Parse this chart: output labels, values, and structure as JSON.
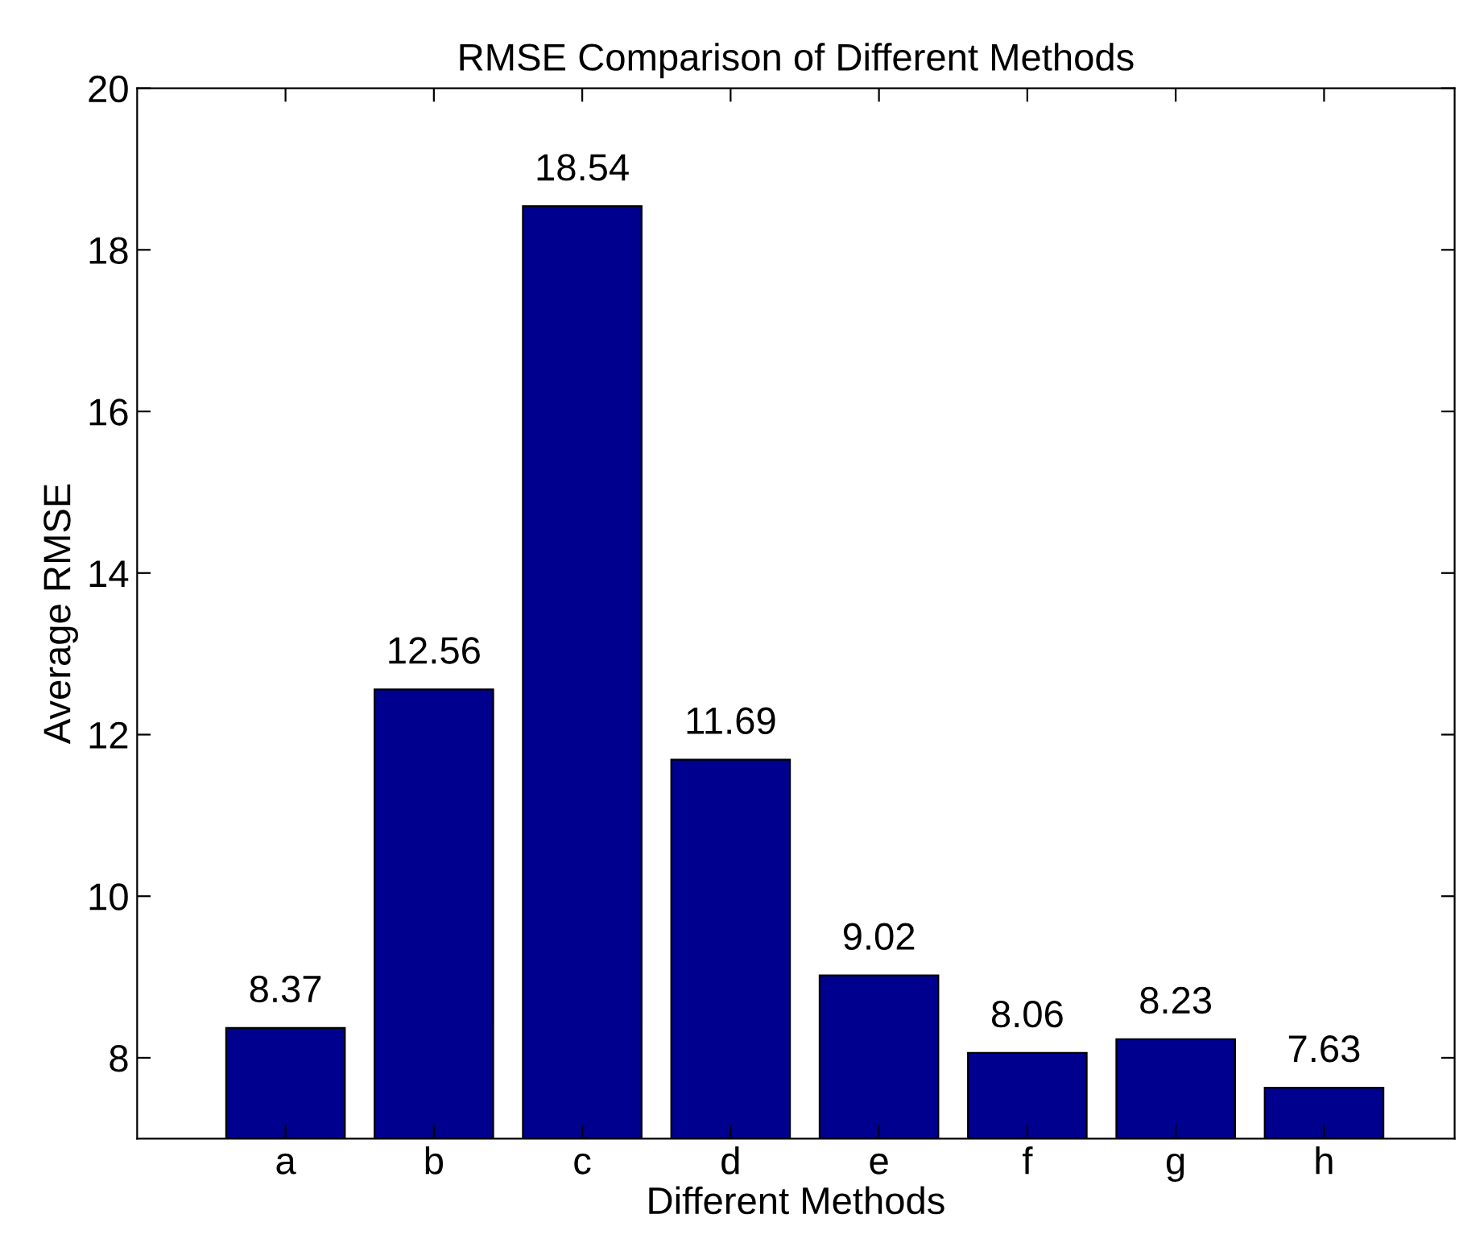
{
  "chart_data": {
    "type": "bar",
    "title": "RMSE Comparison of Different Methods",
    "xlabel": "Different Methods",
    "ylabel": "Average RMSE",
    "categories": [
      "a",
      "b",
      "c",
      "d",
      "e",
      "f",
      "g",
      "h"
    ],
    "values": [
      8.37,
      12.56,
      18.54,
      11.69,
      9.02,
      8.06,
      8.23,
      7.63
    ],
    "color": "#00008f",
    "ylim": [
      7,
      20
    ],
    "yticks": [
      8,
      10,
      12,
      14,
      16,
      18,
      20
    ],
    "data_labels": true,
    "grid": false
  }
}
